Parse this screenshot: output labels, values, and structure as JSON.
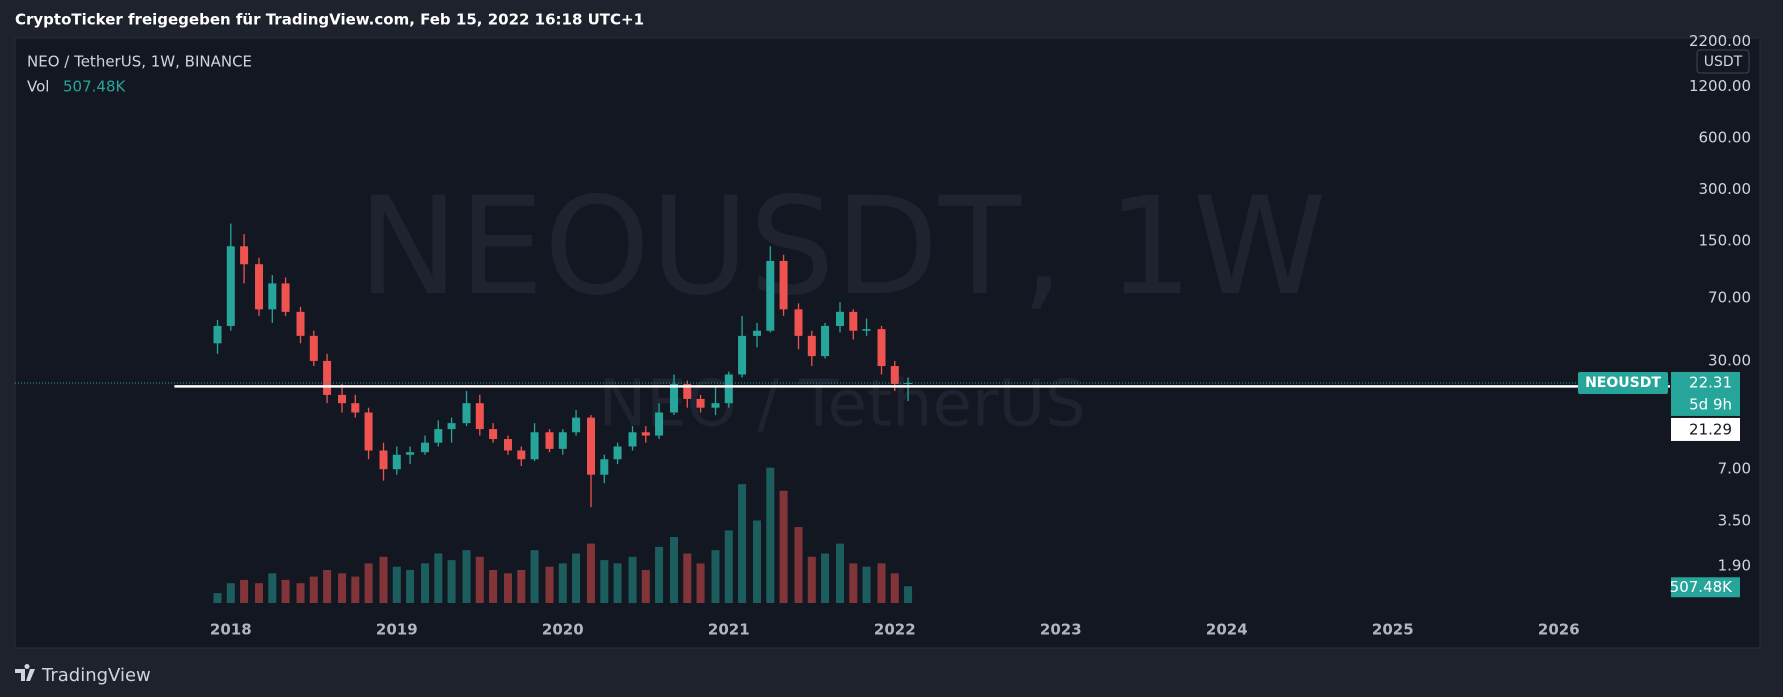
{
  "header": {
    "title": "CryptoTicker freigegeben für TradingView.com, Feb 15, 2022 16:18 UTC+1"
  },
  "footer": {
    "brand": "TradingView"
  },
  "chart_data": {
    "type": "candlestick",
    "title": "NEO / TetherUS, 1W, BINANCE",
    "watermark": "NEOUSDT, 1W",
    "watermark_subtitle": "NEO / TetherUS",
    "symbol": "NEOUSDT",
    "currency": "USDT",
    "log_scale": true,
    "grid": false,
    "up_color": "#26a69a",
    "down_color": "#ef5350",
    "x": [
      2017.92,
      2018.0,
      2018.08,
      2018.17,
      2018.25,
      2018.33,
      2018.42,
      2018.5,
      2018.58,
      2018.67,
      2018.75,
      2018.83,
      2018.92,
      2019.0,
      2019.08,
      2019.17,
      2019.25,
      2019.33,
      2019.42,
      2019.5,
      2019.58,
      2019.67,
      2019.75,
      2019.83,
      2019.92,
      2020.0,
      2020.08,
      2020.17,
      2020.25,
      2020.33,
      2020.42,
      2020.5,
      2020.58,
      2020.67,
      2020.75,
      2020.83,
      2020.92,
      2021.0,
      2021.08,
      2021.17,
      2021.25,
      2021.33,
      2021.42,
      2021.5,
      2021.58,
      2021.67,
      2021.75,
      2021.83,
      2021.92,
      2022.0,
      2022.08
    ],
    "open": [
      38,
      48,
      140,
      110,
      60,
      85,
      58,
      42,
      30,
      19,
      17,
      15,
      9,
      7,
      8.5,
      8.8,
      10,
      12,
      13,
      17,
      12,
      10.5,
      9,
      8,
      11.5,
      9.2,
      11.5,
      14,
      6.5,
      8,
      9.5,
      11.5,
      11,
      15,
      22,
      18,
      16,
      17,
      25,
      42,
      45,
      115,
      60,
      42,
      32,
      48,
      58,
      45,
      46,
      28,
      22
    ],
    "high": [
      52,
      190,
      165,
      120,
      95,
      92,
      62,
      45,
      33,
      22,
      19,
      16,
      10,
      9.5,
      9.5,
      11,
      13.5,
      14,
      20,
      19,
      13,
      11,
      9.5,
      13,
      12,
      12,
      15.5,
      14.5,
      8.5,
      10,
      12.5,
      12.5,
      17,
      25,
      23,
      19,
      21,
      26,
      55,
      50,
      140,
      125,
      65,
      45,
      50,
      66,
      60,
      53,
      48,
      30,
      24
    ],
    "low": [
      33,
      45,
      85,
      55,
      50,
      55,
      38,
      28,
      17,
      15,
      14,
      8,
      6,
      6.5,
      7.5,
      8.5,
      9.5,
      10,
      12.5,
      11,
      10,
      8.5,
      7.3,
      7.8,
      8.8,
      8.5,
      11,
      4.2,
      5.8,
      7.5,
      9,
      10,
      10.5,
      14.5,
      16,
      15,
      14.5,
      16,
      24,
      36,
      44,
      55,
      35,
      28,
      31,
      44,
      40,
      42,
      25,
      20,
      17.5
    ],
    "close": [
      48,
      140,
      110,
      60,
      85,
      58,
      42,
      30,
      19,
      17,
      15,
      9,
      7,
      8.5,
      8.8,
      10,
      12,
      13,
      17,
      12,
      10.5,
      9,
      8,
      11.5,
      9.2,
      11.5,
      14,
      6.5,
      8,
      9.5,
      11.5,
      11,
      15,
      22,
      18,
      16,
      17,
      25,
      42,
      45,
      115,
      60,
      42,
      32,
      48,
      58,
      45,
      46,
      28,
      22,
      22.31
    ],
    "volume": [
      300000,
      600000,
      700000,
      600000,
      900000,
      700000,
      600000,
      800000,
      1000000,
      900000,
      800000,
      1200000,
      1400000,
      1100000,
      1000000,
      1200000,
      1500000,
      1300000,
      1600000,
      1400000,
      1000000,
      900000,
      1000000,
      1600000,
      1100000,
      1200000,
      1500000,
      1800000,
      1300000,
      1200000,
      1400000,
      1000000,
      1700000,
      2000000,
      1500000,
      1200000,
      1600000,
      2200000,
      3600000,
      2500000,
      4100000,
      3400000,
      2300000,
      1400000,
      1500000,
      1800000,
      1200000,
      1100000,
      1200000,
      900000,
      507480
    ],
    "volume_ylim": [
      0,
      5000000
    ],
    "volume_label": "Vol",
    "last_volume": {
      "value": 507480,
      "label": "507.48K"
    },
    "last_price": 22.31,
    "countdown": "5d 9h",
    "horizontal_line": {
      "start": 2017.66,
      "value": 21.29
    },
    "xlim": [
      2016.7,
      2026.67
    ],
    "xticks": [
      2018,
      2019,
      2020,
      2021,
      2022,
      2023,
      2024,
      2025,
      2026
    ],
    "ylim": [
      1,
      2300
    ],
    "yticks": [
      {
        "value": 1.9,
        "label": "1.90"
      },
      {
        "value": 3.5,
        "label": "3.50"
      },
      {
        "value": 7,
        "label": "7.00"
      },
      {
        "value": 30,
        "label": "30.00"
      },
      {
        "value": 70,
        "label": "70.00"
      },
      {
        "value": 150,
        "label": "150.00"
      },
      {
        "value": 300,
        "label": "300.00"
      },
      {
        "value": 600,
        "label": "600.00"
      },
      {
        "value": 1200,
        "label": "1200.00"
      },
      {
        "value": 2200,
        "label": "2200.00"
      }
    ]
  }
}
